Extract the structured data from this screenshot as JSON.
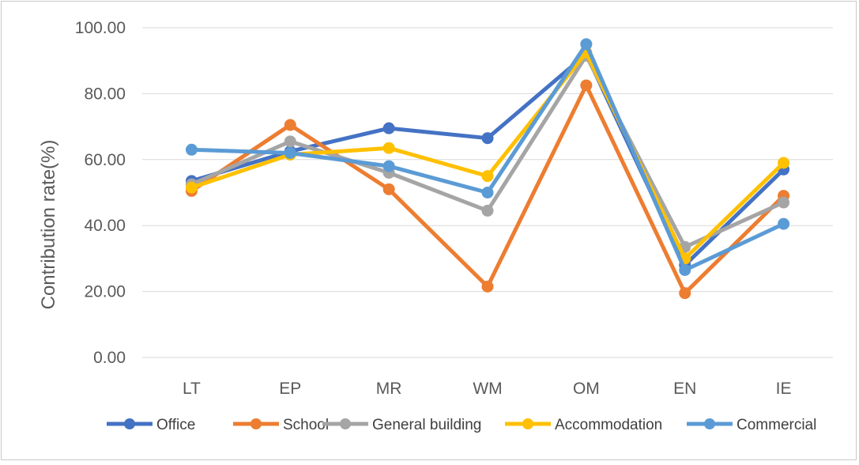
{
  "chart_data": {
    "type": "line",
    "title": "",
    "xlabel": "",
    "ylabel": "Contribution rate(%)",
    "categories": [
      "LT",
      "EP",
      "MR",
      "WM",
      "OM",
      "EN",
      "IE"
    ],
    "ylim": [
      0,
      100
    ],
    "yticks": [
      "0.00",
      "20.00",
      "40.00",
      "60.00",
      "80.00",
      "100.00"
    ],
    "grid": true,
    "legend_position": "bottom",
    "series": [
      {
        "name": "Office",
        "color": "#4472C4",
        "values": [
          53.5,
          62.5,
          69.5,
          66.5,
          92,
          28,
          57
        ]
      },
      {
        "name": "School",
        "color": "#ED7D31",
        "values": [
          50.5,
          70.5,
          51,
          21.5,
          82.5,
          19.5,
          49
        ]
      },
      {
        "name": "General building",
        "color": "#A5A5A5",
        "values": [
          52.5,
          65.5,
          56,
          44.5,
          91.5,
          33.5,
          47
        ]
      },
      {
        "name": "Accommodation",
        "color": "#FFC000",
        "values": [
          51.5,
          61.5,
          63.5,
          55,
          92.5,
          30,
          59
        ]
      },
      {
        "name": "Commercial",
        "color": "#5B9BD5",
        "values": [
          63,
          62,
          58,
          50,
          95,
          26.5,
          40.5
        ]
      }
    ]
  }
}
